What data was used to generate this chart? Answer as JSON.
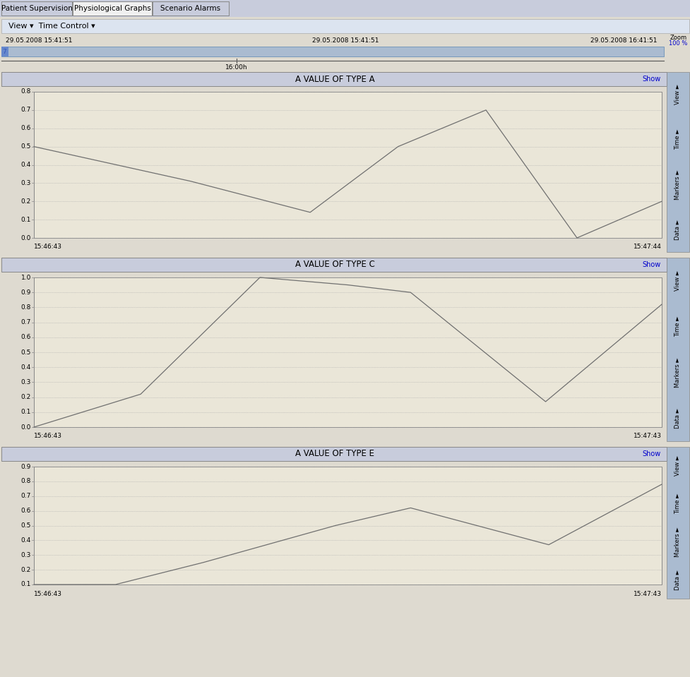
{
  "tabs": [
    "Patient Supervision",
    "Physiological Graphs",
    "Scenario Alarms"
  ],
  "active_tab": "Physiological Graphs",
  "toolbar_text": "View ▾  Time Control ▾",
  "time_left": "29.05.2008 15:41:51",
  "time_center": "29.05.2008 15:41:51",
  "time_right": "29.05.2008 16:41:51",
  "zoom_label": "Zoom",
  "zoom_pct": "100 %",
  "timeline_marker": "16:00h",
  "bg_color": "#dedad0",
  "content_bg": "#dedad0",
  "header_bg": "#c8ccdc",
  "tab_active_bg": "#f0f0f0",
  "tab_inactive_bg": "#c8ccdc",
  "timebar_bg": "#aabbd0",
  "right_sidebar_bg": "#aabbd0",
  "plot_bg": "#eae6d8",
  "line_color": "#707070",
  "grid_color": "#aaaaaa",
  "sidebar_items": [
    "View ►",
    "Time ►",
    "Markers ►",
    "Data ►"
  ],
  "charts": [
    {
      "title": "A VALUE OF TYPE A",
      "x_left": "15:46:43",
      "x_right": "15:47:44",
      "y_min": 0.0,
      "y_max": 0.8,
      "y_ticks": [
        0.0,
        0.1,
        0.2,
        0.3,
        0.4,
        0.5,
        0.6,
        0.7,
        0.8
      ],
      "line_x": [
        0.0,
        0.25,
        0.44,
        0.58,
        0.72,
        0.865,
        1.0
      ],
      "line_y": [
        0.5,
        0.31,
        0.14,
        0.5,
        0.7,
        0.0,
        0.2
      ]
    },
    {
      "title": "A VALUE OF TYPE C",
      "x_left": "15:46:43",
      "x_right": "15:47:43",
      "y_min": 0.0,
      "y_max": 1.0,
      "y_ticks": [
        0.0,
        0.1,
        0.2,
        0.3,
        0.4,
        0.5,
        0.6,
        0.7,
        0.8,
        0.9,
        1.0
      ],
      "line_x": [
        0.0,
        0.17,
        0.36,
        0.5,
        0.6,
        0.815,
        1.0
      ],
      "line_y": [
        0.0,
        0.22,
        1.0,
        0.95,
        0.9,
        0.17,
        0.82
      ]
    },
    {
      "title": "A VALUE OF TYPE E",
      "x_left": "15:46:43",
      "x_right": "15:47:43",
      "y_min": 0.1,
      "y_max": 0.9,
      "y_ticks": [
        0.1,
        0.2,
        0.3,
        0.4,
        0.5,
        0.6,
        0.7,
        0.8,
        0.9
      ],
      "line_x": [
        0.0,
        0.13,
        0.27,
        0.48,
        0.6,
        0.82,
        1.0
      ],
      "line_y": [
        0.1,
        0.1,
        0.25,
        0.5,
        0.62,
        0.37,
        0.78
      ]
    }
  ]
}
